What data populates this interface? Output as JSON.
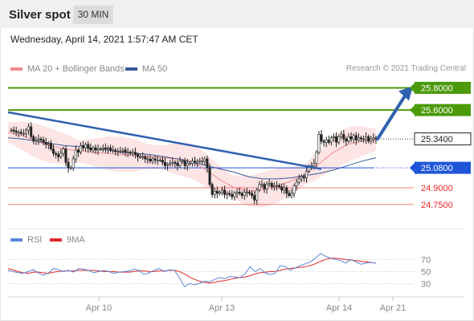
{
  "header": {
    "title": "Silver spot",
    "timeframe": "30 MIN"
  },
  "datetime": "Wednesday, April 14, 2021 1:57:47 AM CET",
  "legend": {
    "ma20_label": "MA 20 + Bollinger Bands",
    "ma50_label": "MA 50",
    "credit": "Research © 2021 Trading Central",
    "rsi_label": "RSI",
    "ma9_label": "9MA"
  },
  "colors": {
    "green": "#4c9a0b",
    "blue": "#1f55d9",
    "red": "#ec2a2a",
    "ma20": "#f28c8c",
    "ma50": "#3a5a9a",
    "rsi": "#5b86d8",
    "ma9": "#e02a2a",
    "bb_fill": "#fde0e0",
    "arrow": "#2f61b0",
    "candle": "#222222"
  },
  "chart_data": [
    {
      "type": "candlestick",
      "y_range": [
        24.64,
        25.89
      ],
      "x_ticks": [
        "Apr 10",
        "Apr 13",
        "Apr 14",
        "Apr 21"
      ],
      "levels": [
        {
          "value": 25.8,
          "label": "25.8000",
          "style": "green"
        },
        {
          "value": 25.6,
          "label": "25.6000",
          "style": "green"
        },
        {
          "value": 25.34,
          "label": "25.3400",
          "style": "current"
        },
        {
          "value": 25.08,
          "label": "25.0800",
          "style": "blue"
        },
        {
          "value": 24.9,
          "label": "24.9000",
          "style": "red"
        },
        {
          "value": 24.75,
          "label": "24.7500",
          "style": "red"
        }
      ],
      "candle_closes": [
        25.42,
        25.41,
        25.4,
        25.4,
        25.39,
        25.39,
        25.42,
        25.45,
        25.36,
        25.32,
        25.33,
        25.34,
        25.33,
        25.31,
        25.29,
        25.3,
        25.25,
        25.21,
        25.2,
        25.18,
        25.21,
        25.25,
        25.13,
        25.08,
        25.08,
        25.16,
        25.24,
        25.22,
        25.28,
        25.26,
        25.29,
        25.26,
        25.24,
        25.26,
        25.24,
        25.25,
        25.25,
        25.26,
        25.25,
        25.26,
        25.24,
        25.24,
        25.23,
        25.23,
        25.23,
        25.24,
        25.22,
        25.22,
        25.21,
        25.22,
        25.2,
        25.18,
        25.18,
        25.18,
        25.16,
        25.16,
        25.14,
        25.16,
        25.15,
        25.15,
        25.15,
        25.13,
        25.1,
        25.11,
        25.12,
        25.13,
        25.12,
        25.1,
        25.14,
        25.14,
        25.1,
        25.12,
        25.12,
        25.14,
        25.13,
        25.14,
        25.14,
        25.14,
        25.16,
        25.08,
        24.93,
        24.84,
        24.87,
        24.85,
        24.86,
        24.88,
        24.84,
        24.85,
        24.84,
        24.82,
        24.85,
        24.86,
        24.85,
        24.83,
        24.86,
        24.86,
        24.85,
        24.83,
        24.79,
        24.88,
        24.93,
        24.93,
        24.89,
        24.93,
        24.94,
        24.91,
        24.92,
        24.92,
        24.91,
        24.88,
        24.9,
        24.85,
        24.83,
        24.85,
        24.92,
        24.95,
        24.98,
        25.0,
        24.99,
        25.05,
        25.09,
        25.1,
        25.12,
        25.22,
        25.38,
        25.32,
        25.31,
        25.33,
        25.31,
        25.35,
        25.36,
        25.31,
        25.36,
        25.38,
        25.34,
        25.32,
        25.36,
        25.34,
        25.37,
        25.33,
        25.35,
        25.34,
        25.34,
        25.36,
        25.32,
        25.34,
        25.35,
        25.34
      ],
      "trendline": {
        "start": 25.58,
        "end": 25.07
      },
      "target_arrow": {
        "from": 25.34,
        "to": 25.8
      },
      "ma20": [
        25.4,
        25.37,
        25.32,
        25.28,
        25.25,
        25.23,
        25.22,
        25.21,
        25.2,
        25.19,
        25.18,
        25.17,
        25.16,
        25.14,
        25.06,
        24.97,
        24.9,
        24.87,
        24.88,
        24.92,
        24.96,
        25.02,
        25.12,
        25.22,
        25.29,
        25.32,
        25.33
      ],
      "ma50": [
        25.35,
        25.34,
        25.32,
        25.3,
        25.28,
        25.27,
        25.25,
        25.24,
        25.22,
        25.21,
        25.2,
        25.18,
        25.16,
        25.13,
        25.1,
        25.07,
        25.04,
        25.0,
        24.98,
        24.98,
        24.99,
        25.01,
        25.03,
        25.06,
        25.1,
        25.14,
        25.17
      ]
    },
    {
      "type": "line",
      "name": "RSI",
      "y_ticks": [
        70,
        50,
        30
      ],
      "y_range": [
        12,
        85
      ],
      "series": [
        {
          "name": "RSI",
          "values": [
            52,
            50,
            48,
            47,
            50,
            53,
            48,
            44,
            48,
            55,
            53,
            50,
            52,
            49,
            55,
            54,
            52,
            48,
            50,
            52,
            50,
            47,
            49,
            50,
            51,
            54,
            52,
            45,
            48,
            52,
            55,
            50,
            53,
            52,
            40,
            25,
            30,
            28,
            30,
            34,
            33,
            37,
            40,
            38,
            42,
            41,
            40,
            46,
            58,
            50,
            55,
            48,
            45,
            47,
            60,
            58,
            52,
            56,
            60,
            63,
            66,
            72,
            80,
            75,
            72,
            70,
            68,
            64,
            70,
            66,
            62,
            64,
            65,
            64
          ]
        },
        {
          "name": "9MA",
          "values": [
            55,
            53,
            50,
            48,
            47,
            49,
            49,
            48,
            47,
            49,
            50,
            51,
            51,
            51,
            52,
            52,
            52,
            52,
            51,
            50,
            50,
            50,
            49,
            49,
            49,
            50,
            51,
            51,
            50,
            50,
            51,
            51,
            52,
            52,
            50,
            46,
            41,
            37,
            34,
            32,
            31,
            32,
            34,
            35,
            37,
            39,
            40,
            41,
            43,
            46,
            48,
            49,
            50,
            50,
            52,
            54,
            55,
            56,
            57,
            58,
            60,
            63,
            67,
            70,
            72,
            72,
            71,
            70,
            69,
            68,
            67,
            66,
            65,
            64
          ]
        }
      ]
    }
  ]
}
